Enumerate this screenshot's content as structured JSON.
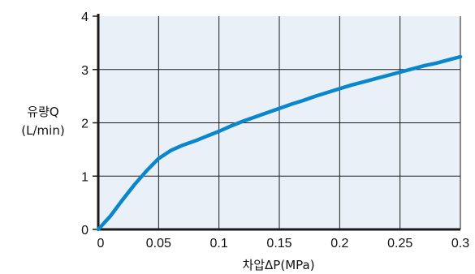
{
  "chart_data": {
    "type": "line",
    "xlabel": "차압ΔP(MPa)",
    "ylabel": [
      "유량Q",
      "(L/min)"
    ],
    "xlim": [
      0,
      0.3
    ],
    "ylim": [
      0,
      4
    ],
    "x_ticks": [
      "0",
      "0.05",
      "0.1",
      "0.15",
      "0.2",
      "0.25",
      "0.3"
    ],
    "y_ticks": [
      "0",
      "1",
      "2",
      "3",
      "4"
    ],
    "grid": true,
    "series": [
      {
        "x": [
          0,
          0.01,
          0.02,
          0.03,
          0.04,
          0.05,
          0.06,
          0.07,
          0.08,
          0.09,
          0.1,
          0.11,
          0.12,
          0.13,
          0.14,
          0.15,
          0.16,
          0.17,
          0.18,
          0.19,
          0.2,
          0.21,
          0.22,
          0.23,
          0.24,
          0.25,
          0.26,
          0.27,
          0.28,
          0.29,
          0.3
        ],
        "y": [
          0,
          0.25,
          0.55,
          0.84,
          1.1,
          1.33,
          1.48,
          1.58,
          1.66,
          1.75,
          1.84,
          1.94,
          2.03,
          2.11,
          2.19,
          2.27,
          2.35,
          2.42,
          2.5,
          2.57,
          2.64,
          2.71,
          2.77,
          2.83,
          2.89,
          2.95,
          3.01,
          3.07,
          3.12,
          3.18,
          3.24
        ],
        "color": "#0a86cc"
      }
    ],
    "colors": {
      "plot_background": "#e9f0f8",
      "grid": "#1a1a1a",
      "axis": "#1a1a1a",
      "text": "#111111"
    }
  }
}
